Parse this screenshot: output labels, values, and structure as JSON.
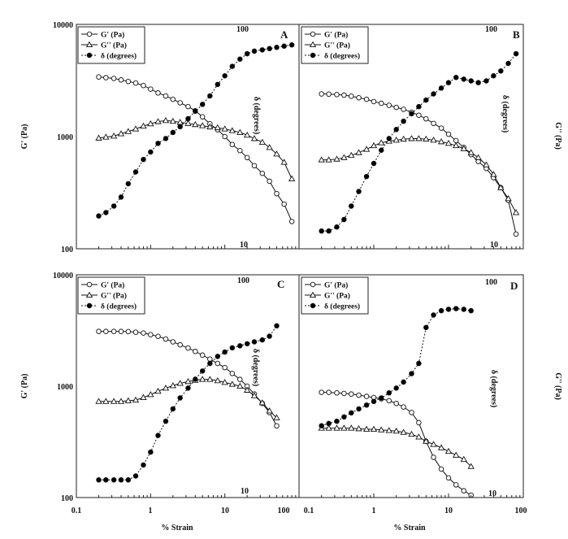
{
  "figure": {
    "x_label": "% Strain",
    "x_ticks": [
      "0.1",
      "1",
      "10",
      "100"
    ],
    "y_left_label": "G' (Pa)",
    "y_left_ticks": [
      "100",
      "1000",
      "10000"
    ],
    "y_right_label": "G'' (Pa)",
    "delta_axis_label": "δ (degrees)",
    "delta_top": "100",
    "delta_bottom": "10"
  },
  "legend": [
    "G' (Pa)",
    "G'' (Pa)",
    "δ (degrees)"
  ],
  "chart_data": [
    {
      "type": "line",
      "panel": "A",
      "x_scale": "log",
      "y_scale": "log",
      "xlim": [
        0.1,
        100
      ],
      "ylim": [
        100,
        10000
      ],
      "x": [
        0.2,
        0.25,
        0.32,
        0.4,
        0.5,
        0.63,
        0.8,
        1,
        1.26,
        1.6,
        2,
        2.5,
        3.2,
        4,
        5,
        6.3,
        8,
        10,
        12.6,
        16,
        20,
        25,
        32,
        40,
        50,
        63,
        80
      ],
      "series": [
        {
          "name": "G' (Pa)",
          "values": [
            3400,
            3350,
            3300,
            3200,
            3100,
            3000,
            2850,
            2650,
            2450,
            2300,
            2150,
            2000,
            1850,
            1700,
            1500,
            1300,
            1150,
            1000,
            850,
            750,
            650,
            550,
            470,
            400,
            310,
            250,
            175
          ]
        },
        {
          "name": "G'' (Pa)",
          "values": [
            970,
            990,
            1010,
            1060,
            1110,
            1170,
            1240,
            1300,
            1360,
            1390,
            1370,
            1340,
            1310,
            1280,
            1250,
            1220,
            1200,
            1170,
            1130,
            1090,
            1030,
            960,
            890,
            800,
            700,
            590,
            420
          ]
        },
        {
          "name": "δ (degrees)",
          "axis": "right",
          "ylim": [
            10,
            100
          ],
          "values": [
            14,
            14.5,
            15.5,
            17,
            19.5,
            22,
            25,
            27,
            29.5,
            31,
            33,
            35,
            38,
            41,
            44,
            48,
            54,
            59,
            65,
            70,
            74,
            76,
            77,
            78,
            79,
            80,
            81
          ]
        }
      ]
    },
    {
      "type": "line",
      "panel": "B",
      "x_scale": "log",
      "y_scale": "log",
      "xlim": [
        0.1,
        100
      ],
      "ylim": [
        100,
        10000
      ],
      "x": [
        0.2,
        0.25,
        0.32,
        0.4,
        0.5,
        0.63,
        0.8,
        1,
        1.26,
        1.6,
        2,
        2.5,
        3.2,
        4,
        5,
        6.3,
        8,
        10,
        12.6,
        16,
        20,
        25,
        32,
        40,
        50,
        63,
        80
      ],
      "series": [
        {
          "name": "G' (Pa)",
          "values": [
            2400,
            2390,
            2370,
            2340,
            2290,
            2220,
            2150,
            2050,
            1980,
            1900,
            1820,
            1750,
            1650,
            1550,
            1440,
            1310,
            1190,
            1050,
            920,
            800,
            690,
            600,
            520,
            430,
            350,
            270,
            135
          ]
        },
        {
          "name": "G'' (Pa)",
          "values": [
            620,
            620,
            630,
            650,
            680,
            720,
            770,
            830,
            880,
            910,
            930,
            950,
            960,
            960,
            950,
            930,
            900,
            870,
            830,
            780,
            720,
            650,
            560,
            460,
            350,
            280,
            210
          ]
        },
        {
          "name": "δ (degrees)",
          "axis": "right",
          "ylim": [
            10,
            100
          ],
          "values": [
            12,
            12,
            12.5,
            13.5,
            15.5,
            18,
            21,
            24,
            27.5,
            31,
            34,
            37,
            40,
            43,
            46,
            49,
            52,
            55,
            58,
            57,
            56,
            55,
            56,
            59,
            62,
            67,
            74
          ]
        }
      ]
    },
    {
      "type": "line",
      "panel": "C",
      "x_scale": "log",
      "y_scale": "log",
      "xlim": [
        0.1,
        100
      ],
      "ylim": [
        100,
        10000
      ],
      "x": [
        0.2,
        0.25,
        0.32,
        0.4,
        0.5,
        0.63,
        0.8,
        1,
        1.26,
        1.6,
        2,
        2.5,
        3.2,
        4,
        5,
        6.3,
        8,
        10,
        12.6,
        16,
        20,
        25,
        32,
        40,
        50
      ],
      "series": [
        {
          "name": "G' (Pa)",
          "values": [
            3100,
            3100,
            3100,
            3100,
            3090,
            3050,
            3000,
            2900,
            2800,
            2650,
            2500,
            2350,
            2200,
            2050,
            1900,
            1750,
            1600,
            1470,
            1300,
            1150,
            1000,
            850,
            700,
            580,
            440
          ]
        },
        {
          "name": "G'' (Pa)",
          "values": [
            730,
            730,
            730,
            730,
            740,
            750,
            790,
            840,
            900,
            960,
            1010,
            1060,
            1100,
            1130,
            1150,
            1150,
            1120,
            1080,
            1040,
            1000,
            920,
            820,
            710,
            600,
            520
          ]
        },
        {
          "name": "δ (degrees)",
          "axis": "right",
          "ylim": [
            10,
            100
          ],
          "values": [
            12,
            12,
            12,
            12,
            12,
            12.5,
            14,
            16,
            19,
            22,
            25,
            28,
            31,
            34,
            37,
            40,
            43,
            45,
            47,
            48,
            49,
            50,
            51,
            53,
            59
          ]
        }
      ]
    },
    {
      "type": "line",
      "panel": "D",
      "x_scale": "log",
      "y_scale": "log",
      "xlim": [
        0.1,
        100
      ],
      "ylim": [
        100,
        10000
      ],
      "x": [
        0.2,
        0.25,
        0.32,
        0.4,
        0.5,
        0.63,
        0.8,
        1,
        1.26,
        1.6,
        2,
        2.5,
        3.2,
        4,
        5,
        6.3,
        8,
        10,
        12.6,
        16,
        20
      ],
      "series": [
        {
          "name": "G' (Pa)",
          "values": [
            880,
            880,
            870,
            860,
            850,
            830,
            810,
            790,
            770,
            740,
            700,
            650,
            580,
            470,
            320,
            230,
            180,
            150,
            130,
            115,
            105
          ]
        },
        {
          "name": "G'' (Pa)",
          "values": [
            420,
            420,
            420,
            420,
            420,
            415,
            410,
            410,
            405,
            400,
            395,
            385,
            370,
            350,
            320,
            300,
            280,
            260,
            240,
            220,
            190
          ]
        },
        {
          "name": "δ (degrees)",
          "axis": "right",
          "ylim": [
            10,
            100
          ],
          "values": [
            21,
            21.5,
            22,
            23,
            24,
            25,
            26,
            27,
            28,
            29.5,
            31,
            33,
            36,
            40,
            58,
            66,
            69,
            70,
            70.5,
            70,
            69
          ]
        }
      ]
    }
  ]
}
